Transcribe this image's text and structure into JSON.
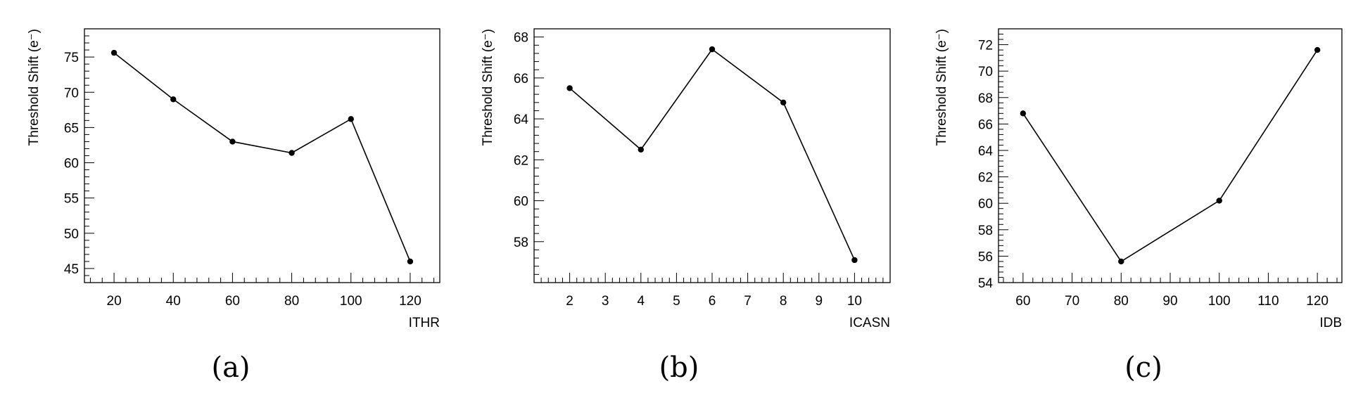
{
  "chart_data": [
    {
      "type": "line",
      "caption": "(a)",
      "xlabel": "ITHR",
      "ylabel": "Threshold Shift (e⁻)",
      "xlim": [
        10,
        130
      ],
      "ylim": [
        43,
        79
      ],
      "xticks": [
        20,
        40,
        60,
        80,
        100,
        120
      ],
      "yticks": [
        45,
        50,
        55,
        60,
        65,
        70,
        75
      ],
      "x": [
        20,
        40,
        60,
        80,
        100,
        120
      ],
      "y": [
        75.6,
        69.0,
        63.0,
        61.4,
        66.2,
        46.0
      ],
      "grid": false,
      "legend": "none"
    },
    {
      "type": "line",
      "caption": "(b)",
      "xlabel": "ICASN",
      "ylabel": "Threshold Shift (e⁻)",
      "xlim": [
        1,
        11
      ],
      "ylim": [
        56.0,
        68.4
      ],
      "xticks": [
        2,
        3,
        4,
        5,
        6,
        7,
        8,
        9,
        10
      ],
      "yticks": [
        58,
        60,
        62,
        64,
        66,
        68
      ],
      "x": [
        2,
        4,
        6,
        8,
        10
      ],
      "y": [
        65.5,
        62.5,
        67.4,
        64.8,
        57.1
      ],
      "grid": false,
      "legend": "none"
    },
    {
      "type": "line",
      "caption": "(c)",
      "xlabel": "IDB",
      "ylabel": "Threshold Shift (e⁻)",
      "xlim": [
        55,
        125
      ],
      "ylim": [
        54,
        73.2
      ],
      "xticks": [
        60,
        70,
        80,
        90,
        100,
        110,
        120
      ],
      "yticks": [
        54,
        56,
        58,
        60,
        62,
        64,
        66,
        68,
        70,
        72
      ],
      "x": [
        60,
        80,
        100,
        120
      ],
      "y": [
        66.8,
        55.6,
        60.2,
        71.6
      ],
      "grid": false,
      "legend": "none"
    }
  ]
}
